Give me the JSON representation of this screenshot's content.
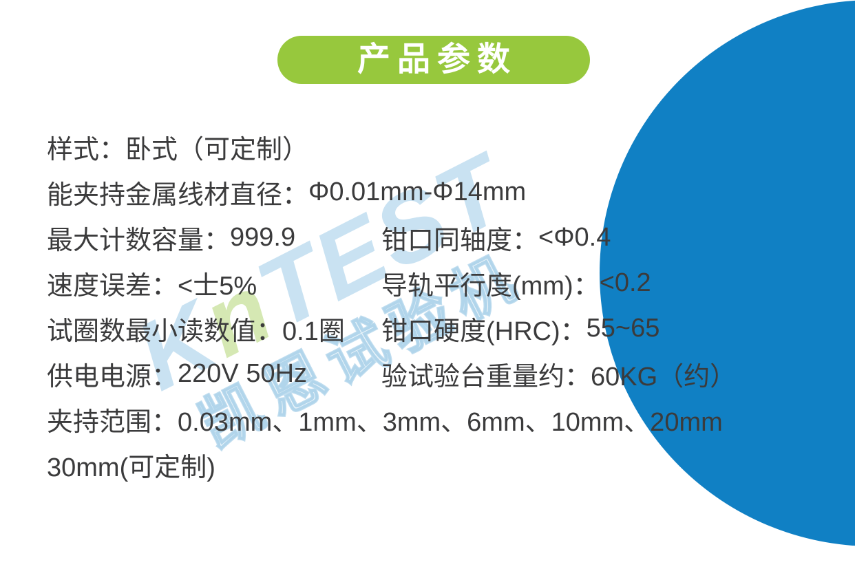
{
  "badge": {
    "label": "产品参数"
  },
  "specs": {
    "rows": [
      {
        "label": "样式：",
        "value": "卧式（可定制）"
      },
      {
        "label": "能夹持金属线材直径：",
        "value": "Φ0.01mm-Φ14mm"
      },
      {
        "left": {
          "label": "最大计数容量：",
          "value": "999.9"
        },
        "right": {
          "label": "钳口同轴度：",
          "value": "<Φ0.4"
        }
      },
      {
        "left": {
          "label": "速度误差：",
          "value": "<士5%"
        },
        "right": {
          "label": "导轨平行度(mm)：",
          "value": "<0.2"
        }
      },
      {
        "left": {
          "label": "试圈数最小读数值：",
          "value": "0.1圈"
        },
        "right": {
          "label": "钳口硬度(HRC)：",
          "value": "55~65"
        }
      },
      {
        "left": {
          "label": "供电电源：",
          "value": "220V 50Hz"
        },
        "right": {
          "label": "验试验台重量约：",
          "value": "60KG（约）"
        }
      },
      {
        "label": "夹持范围：",
        "value": "0.03mm、1mm、3mm、6mm、10mm、20mm"
      },
      {
        "label": "",
        "value": "30mm(可定制)"
      }
    ]
  },
  "watermark": {
    "brand_prefix": "K",
    "brand_accent": "n",
    "brand_suffix": "TEST",
    "cn_text": "凯恩试验机"
  },
  "colors": {
    "badge_green": "#97C83D",
    "circle_blue": "#1080C4",
    "text_gray": "#3B3B3C",
    "watermark_blue": "#2E8FCB",
    "watermark_green": "#9CC84A",
    "background": "#FFFFFF"
  }
}
